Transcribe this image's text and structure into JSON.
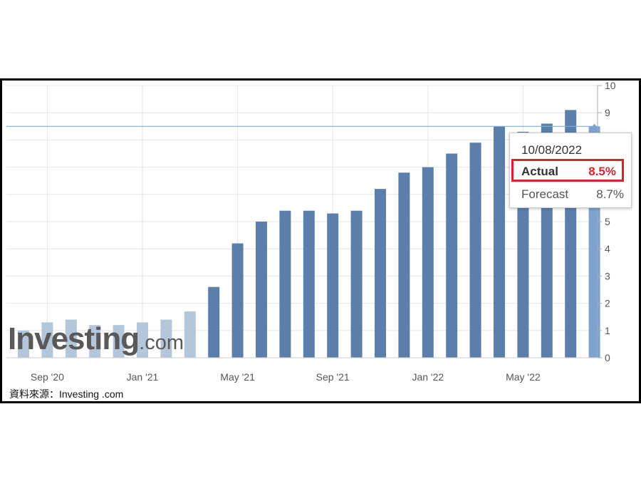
{
  "chart_data": {
    "type": "bar",
    "categories": [
      "Aug '20",
      "Sep '20",
      "Oct '20",
      "Nov '20",
      "Dec '20",
      "Jan '21",
      "Feb '21",
      "Mar '21",
      "Apr '21",
      "May '21",
      "Jun '21",
      "Jul '21",
      "Aug '21",
      "Sep '21",
      "Oct '21",
      "Nov '21",
      "Dec '21",
      "Jan '22",
      "Feb '22",
      "Mar '22",
      "Apr '22",
      "May '22",
      "Jun '22",
      "Jul '22",
      "Aug '22"
    ],
    "values": [
      1.0,
      1.3,
      1.4,
      1.2,
      1.2,
      1.3,
      1.4,
      1.7,
      2.6,
      4.2,
      5.0,
      5.4,
      5.4,
      5.3,
      5.4,
      6.2,
      6.8,
      7.0,
      7.5,
      7.9,
      8.5,
      8.3,
      8.6,
      9.1,
      8.5
    ],
    "x_tick_labels": [
      "Sep '20",
      "Jan '21",
      "May '21",
      "Sep '21",
      "Jan '22",
      "May '22"
    ],
    "x_tick_categories": [
      "Sep '20",
      "Jan '21",
      "May '21",
      "Sep '21",
      "Jan '22",
      "May '22"
    ],
    "y_ticks": [
      0,
      1,
      2,
      3,
      4,
      5,
      6,
      7,
      8,
      9,
      10
    ],
    "ylim": [
      0,
      10
    ],
    "title": "",
    "xlabel": "",
    "ylabel": "",
    "grid": true,
    "reference_line": 8.5,
    "colors": {
      "bar": "#5b7faa",
      "bar_faded": "#b4c6da",
      "bar_highlight": "#7ea2cd",
      "ref_line": "#7ab0d6",
      "grid": "#e6e6e6"
    }
  },
  "tooltip": {
    "date": "10/08/2022",
    "actual_label": "Actual",
    "actual_value": "8.5%",
    "forecast_label": "Forecast",
    "forecast_value": "8.7%"
  },
  "watermark": {
    "brand": "Investing",
    "suffix": ".com"
  },
  "source": "資料來源：Investing .com"
}
